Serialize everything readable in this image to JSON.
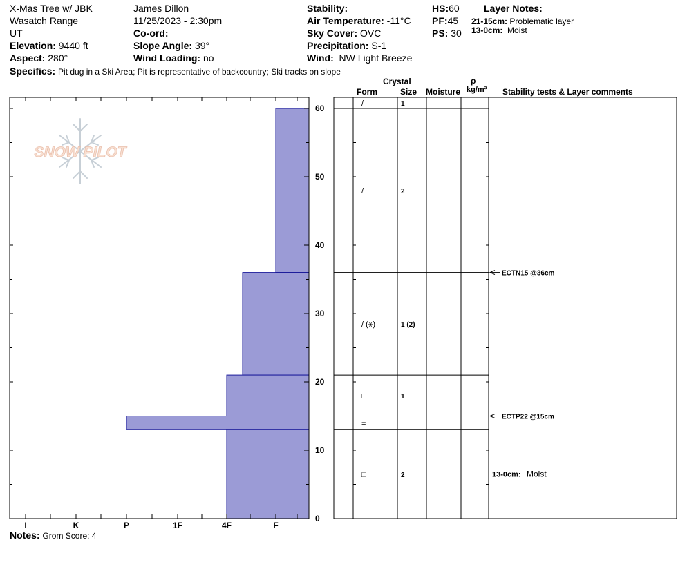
{
  "header": {
    "pit_name": "X-Mas Tree w/ JBK",
    "range": "Wasatch Range",
    "state": "UT",
    "elevation_label": "Elevation:",
    "elevation": "9440 ft",
    "aspect_label": "Aspect:",
    "aspect": "280°",
    "observer": "James Dillon",
    "datetime": "11/25/2023 - 2:30pm",
    "coord_label": "Co-ord:",
    "slope_label": "Slope Angle:",
    "slope": "39°",
    "wind_loading_label": "Wind Loading:",
    "wind_loading": "no",
    "stability_label": "Stability:",
    "air_temp_label": "Air Temperature:",
    "air_temp": "-11°C",
    "sky_label": "Sky Cover:",
    "sky": "OVC",
    "precip_label": "Precipitation:",
    "precip": "S-1",
    "wind_label": "Wind:",
    "wind": "NW Light Breeze",
    "hs_label": "HS:",
    "hs": "60",
    "pf_label": "PF:",
    "pf": "45",
    "ps_label": "PS:",
    "ps": "30",
    "layer_notes_title": "Layer Notes:",
    "layer_notes": [
      {
        "range": "21-15cm:",
        "text": "Problematic layer"
      },
      {
        "range": "13-0cm:",
        "text": "Moist"
      }
    ],
    "specifics_label": "Specifics:",
    "specifics": "Pit dug in a Ski Area;  Pit is representative of backcountry;  Ski tracks on slope"
  },
  "logo_text": "SNOW PILOT",
  "columns": {
    "crystal": "Crystal",
    "form": "Form",
    "size": "Size",
    "moisture": "Moisture",
    "rho": "ρ",
    "density_unit": "kg/m³",
    "stability": "Stability tests & Layer comments"
  },
  "hardness_axis": [
    "I",
    "K",
    "P",
    "1F",
    "4F",
    "F"
  ],
  "depth_axis": {
    "min": 0,
    "max": 60,
    "labels": [
      "0",
      "10",
      "20",
      "30",
      "40",
      "50",
      "60"
    ]
  },
  "notes_label": "Notes:",
  "notes": "Grom Score: 4",
  "chart_data": {
    "type": "bar",
    "title": "",
    "xlabel": "",
    "ylabel": "",
    "ylim": [
      0,
      60
    ],
    "hardness_scale": [
      "F",
      "4F",
      "1F",
      "P",
      "K",
      "I"
    ],
    "layers": [
      {
        "top": 60,
        "bottom": 36,
        "hardness": "F"
      },
      {
        "top": 36,
        "bottom": 21,
        "hardness": "F+"
      },
      {
        "top": 21,
        "bottom": 15,
        "hardness": "4F"
      },
      {
        "top": 15,
        "bottom": 13,
        "hardness": "P"
      },
      {
        "top": 13,
        "bottom": 0,
        "hardness": "4F"
      }
    ],
    "bar_color": "#9b9bd6"
  },
  "crystal_rows": [
    {
      "top": 60,
      "bottom": 60,
      "form": "/",
      "size": "1"
    },
    {
      "top": 60,
      "bottom": 36,
      "form": "/",
      "size": "2"
    },
    {
      "top": 36,
      "bottom": 21,
      "form": "/ (⚹)",
      "size": "1 (2)"
    },
    {
      "top": 21,
      "bottom": 15,
      "form": "□",
      "size": "1"
    },
    {
      "top": 15,
      "bottom": 13,
      "form": "=",
      "size": ""
    },
    {
      "top": 13,
      "bottom": 0,
      "form": "□",
      "size": "2"
    }
  ],
  "stability_tests": [
    {
      "depth": 36,
      "text": "ECTN15 @36cm"
    },
    {
      "depth": 15,
      "text": "ECTP22 @15cm"
    }
  ],
  "layer_comments": [
    {
      "depth": 6.5,
      "label": "13-0cm:",
      "text": "Moist"
    }
  ]
}
